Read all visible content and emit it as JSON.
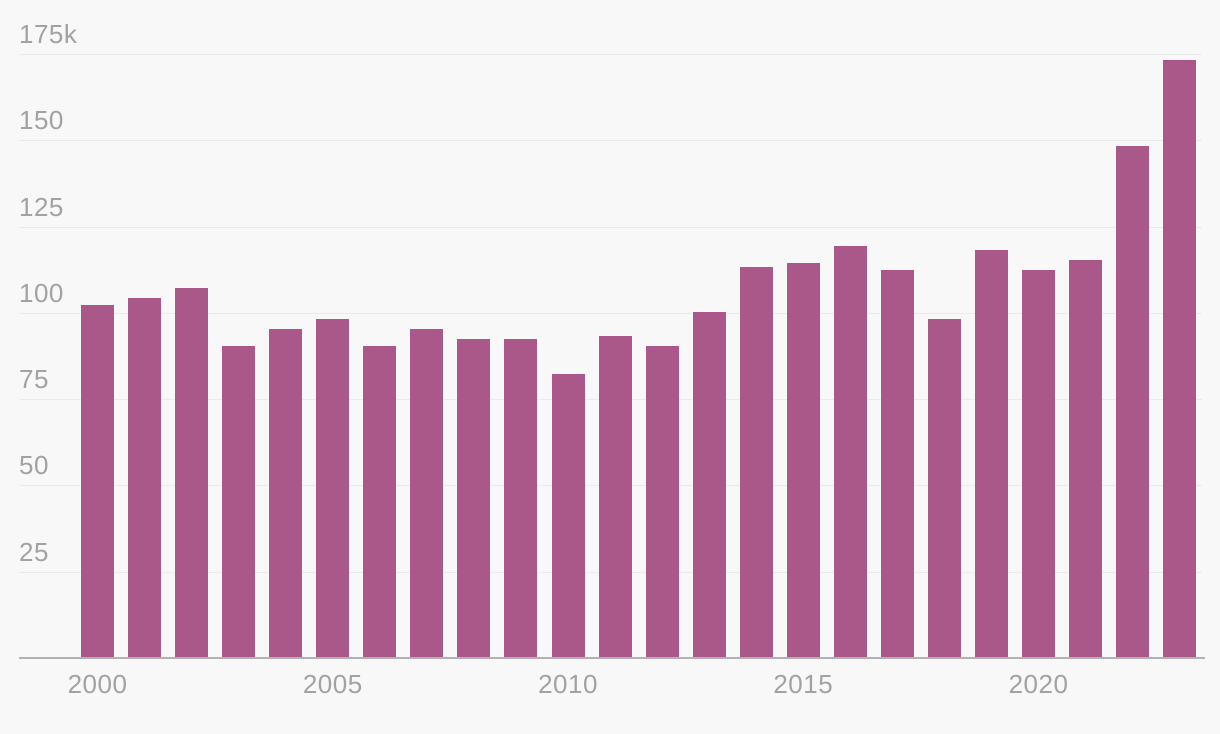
{
  "chart_data": {
    "type": "bar",
    "title": "",
    "unit": "thousands",
    "x": [
      2000,
      2001,
      2002,
      2003,
      2004,
      2005,
      2006,
      2007,
      2008,
      2009,
      2010,
      2011,
      2012,
      2013,
      2014,
      2015,
      2016,
      2017,
      2018,
      2019,
      2020,
      2021,
      2022,
      2023
    ],
    "values": [
      102,
      104,
      107,
      90,
      95,
      98,
      90,
      95,
      92,
      92,
      82,
      93,
      90,
      100,
      113,
      114,
      119,
      112,
      98,
      118,
      112,
      115,
      148,
      173
    ],
    "y_ticks": [
      {
        "value": 25,
        "label": "25"
      },
      {
        "value": 50,
        "label": "50"
      },
      {
        "value": 75,
        "label": "75"
      },
      {
        "value": 100,
        "label": "100"
      },
      {
        "value": 125,
        "label": "125"
      },
      {
        "value": 150,
        "label": "150"
      },
      {
        "value": 175,
        "label": "175k"
      }
    ],
    "x_tick_labels": [
      "2000",
      "2005",
      "2010",
      "2015",
      "2020"
    ],
    "ylim": [
      0,
      190
    ],
    "grid": "horizontal",
    "legend": "none",
    "colors": {
      "bar": "#aa588a",
      "background": "#f8f8f9",
      "gridline": "#eaeaec",
      "baseline": "#b2b2b4",
      "tick_label": "#a2a2a4"
    }
  }
}
